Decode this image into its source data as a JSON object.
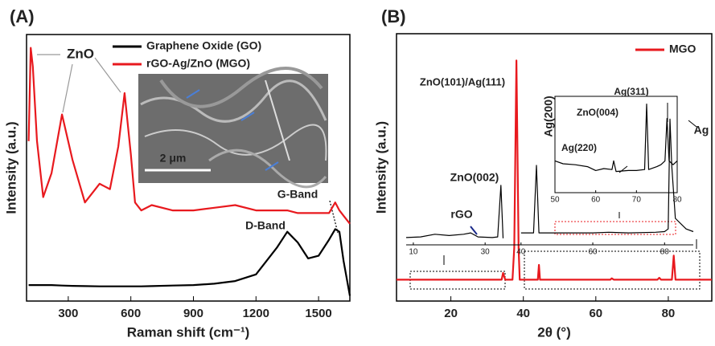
{
  "chart_data": [
    {
      "type": "line",
      "title": "(A)",
      "x_label": "Raman shift (cm⁻¹)",
      "y_label": "Intensity (a.u.)",
      "x": [
        110,
        120,
        130,
        150,
        180,
        220,
        270,
        320,
        380,
        450,
        500,
        540,
        570,
        600,
        620,
        650,
        700,
        800,
        900,
        1000,
        1100,
        1200,
        1300,
        1350,
        1400,
        1450,
        1500,
        1550,
        1580,
        1600,
        1620,
        1650
      ],
      "series": [
        {
          "name": "Graphene Oxide (GO)",
          "color": "#000000",
          "values": [
            6,
            6,
            6,
            6,
            6,
            6,
            5.8,
            5.7,
            5.6,
            5.5,
            5.5,
            5.5,
            5.5,
            5.5,
            5.5,
            5.5,
            5.6,
            5.8,
            6,
            6.5,
            7.5,
            10,
            20,
            26,
            22,
            16,
            17,
            23,
            27,
            26,
            15,
            2
          ]
        },
        {
          "name": "rGO-Ag/ZnO (MGO)",
          "color": "#e8191e",
          "values": [
            60,
            95,
            88,
            60,
            39,
            48,
            70,
            53,
            37,
            44,
            42,
            58,
            78,
            55,
            37,
            34,
            36,
            34,
            34,
            35,
            36,
            34,
            34,
            34,
            33,
            33,
            33,
            33,
            37,
            34,
            32,
            29
          ]
        }
      ],
      "xlim": [
        100,
        1650
      ],
      "ylim": [
        0,
        100
      ],
      "xticks": [
        300,
        600,
        900,
        1200,
        1500
      ],
      "legend": "top-left",
      "annotations": [
        "ZnO",
        "G-Band",
        "D-Band",
        "2 μm"
      ]
    },
    {
      "type": "line",
      "title": "(B)",
      "x_label": "2θ (°)",
      "y_label": "Intensity (a.u.)",
      "x": [
        5,
        10,
        20,
        30,
        33,
        34,
        34.4,
        35,
        37,
        37.5,
        38.1,
        38.7,
        39,
        42,
        44,
        44.3,
        44.6,
        46,
        60,
        64,
        64.4,
        65,
        77,
        77.5,
        78,
        80,
        81,
        81.5,
        82,
        84,
        88,
        92
      ],
      "series": [
        {
          "name": "MGO",
          "color": "#e8191e",
          "values": [
            8,
            8,
            8,
            8,
            8,
            8,
            10.5,
            8,
            8,
            20,
            90,
            20,
            8,
            8,
            8,
            13.5,
            8,
            8,
            8,
            8,
            8.5,
            8,
            8,
            8.7,
            8,
            8,
            8,
            17,
            8,
            8,
            8,
            8
          ]
        }
      ],
      "xlim": [
        5,
        92
      ],
      "ylim": [
        0,
        100
      ],
      "xticks": [
        20,
        40,
        60,
        80
      ],
      "legend": "top-right",
      "annotations": [
        "ZnO(101)/Ag(111)",
        "ZnO(002)",
        "rGO",
        "Ag(200)",
        "Ag"
      ]
    },
    {
      "type": "line",
      "x": [
        8,
        12,
        16,
        20,
        24,
        26,
        28,
        32,
        33.5,
        34.4,
        35,
        38,
        40,
        43.5,
        44.3,
        45,
        50,
        60,
        64.4,
        70,
        77.5,
        80,
        81,
        81.5,
        82,
        83,
        86,
        88
      ],
      "series": [
        {
          "color": "#000000",
          "values": [
            5.5,
            6,
            8,
            7,
            8,
            9,
            6,
            5.5,
            6,
            45,
            5,
            null,
            9,
            9,
            60,
            9,
            9,
            9,
            9.5,
            9,
            9.5,
            10,
            12,
            95,
            60,
            20,
            12,
            10
          ]
        }
      ],
      "xlim": [
        8,
        88
      ],
      "ylim": [
        0,
        100
      ],
      "xticks": [
        10,
        30,
        40,
        60,
        80
      ]
    },
    {
      "type": "line",
      "x": [
        50,
        52,
        55,
        58,
        60,
        62,
        64,
        64.4,
        65,
        68,
        70,
        72,
        72.5,
        73,
        75,
        76,
        77,
        77.5,
        78,
        79,
        80
      ],
      "series": [
        {
          "color": "#000000",
          "values": [
            33,
            30,
            29,
            27,
            23,
            25,
            24,
            33,
            22,
            23,
            23,
            24,
            92,
            24,
            27,
            29,
            33,
            77,
            33,
            29,
            33
          ]
        }
      ],
      "xlim": [
        50,
        80
      ],
      "ylim": [
        0,
        100
      ],
      "xticks": [
        50,
        60,
        70,
        80
      ],
      "annotations": [
        "ZnO(004)",
        "Ag(311)",
        "Ag(220)"
      ]
    }
  ]
}
